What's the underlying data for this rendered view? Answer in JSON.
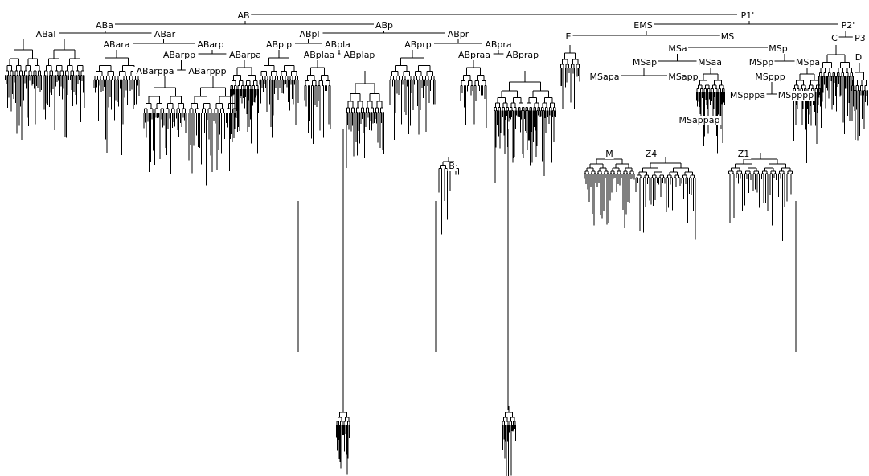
{
  "diagram": {
    "type": "cell lineage tree",
    "line_color": "#000000",
    "background": "#ffffff",
    "labels": [
      "AB",
      "P1'",
      "ABa",
      "ABp",
      "EMS",
      "P2'",
      "ABal",
      "ABar",
      "ABpl",
      "ABpr",
      "E",
      "MS",
      "C",
      "P3",
      "ABara",
      "ABarp",
      "ABplp",
      "ABpla",
      "ABprp",
      "ABpra",
      "MSa",
      "MSp",
      "D",
      "ABarpp",
      "ABarpa",
      "ABplaa",
      "ABplap",
      "ABpraa",
      "ABprap",
      "MSap",
      "MSaa",
      "MSpp",
      "MSpa",
      "ABarppa",
      "ABarppp",
      "MSapa",
      "MSapp",
      "MSppp",
      "MSpppa",
      "MSpppp",
      "MSappap",
      "M",
      "Z4",
      "Z1",
      "B"
    ]
  }
}
